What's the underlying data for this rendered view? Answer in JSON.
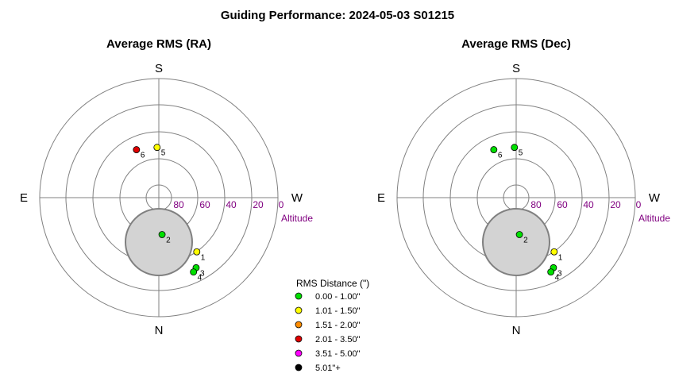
{
  "title": "Guiding Performance: 2024-05-03 S01215",
  "colors": {
    "ring": "#808080",
    "axis": "#808080",
    "altitude_text": "#800080",
    "horizon_fill": "#d3d3d3",
    "horizon_stroke": "#808080",
    "point_stroke": "#000000"
  },
  "legend": {
    "title": "RMS Distance (\")",
    "items": [
      {
        "label": "0.00 - 1.00\"",
        "color": "#00e000"
      },
      {
        "label": "1.01 - 1.50\"",
        "color": "#ffff00"
      },
      {
        "label": "1.51 - 2.00\"",
        "color": "#ff8c00"
      },
      {
        "label": "2.01 - 3.50\"",
        "color": "#e00000"
      },
      {
        "label": "3.51 - 5.00\"",
        "color": "#ff00ff"
      },
      {
        "label": "5.01\"+",
        "color": "#000000"
      }
    ]
  },
  "chart_data": [
    {
      "type": "scatter",
      "title": "Average RMS (RA)",
      "directions": {
        "top": "S",
        "bottom": "N",
        "left": "E",
        "right": "W"
      },
      "altitude_ticks": [
        "80",
        "60",
        "40",
        "20",
        "0"
      ],
      "altitude_label": "Altitude",
      "points": [
        {
          "label": "1",
          "azimuth": 325,
          "altitude": 40,
          "bin": 1
        },
        {
          "label": "2",
          "azimuth": 355,
          "altitude": 62,
          "bin": 0
        },
        {
          "label": "3",
          "azimuth": 332,
          "altitude": 30,
          "bin": 0
        },
        {
          "label": "4",
          "azimuth": 335,
          "altitude": 28,
          "bin": 0
        },
        {
          "label": "5",
          "azimuth": 178,
          "altitude": 52,
          "bin": 1
        },
        {
          "label": "6",
          "azimuth": 155,
          "altitude": 50,
          "bin": 3
        }
      ]
    },
    {
      "type": "scatter",
      "title": "Average RMS (Dec)",
      "directions": {
        "top": "S",
        "bottom": "N",
        "left": "E",
        "right": "W"
      },
      "altitude_ticks": [
        "80",
        "60",
        "40",
        "20",
        "0"
      ],
      "altitude_label": "Altitude",
      "points": [
        {
          "label": "1",
          "azimuth": 325,
          "altitude": 40,
          "bin": 1
        },
        {
          "label": "2",
          "azimuth": 355,
          "altitude": 62,
          "bin": 0
        },
        {
          "label": "3",
          "azimuth": 332,
          "altitude": 30,
          "bin": 0
        },
        {
          "label": "4",
          "azimuth": 335,
          "altitude": 28,
          "bin": 0
        },
        {
          "label": "5",
          "azimuth": 178,
          "altitude": 52,
          "bin": 0
        },
        {
          "label": "6",
          "azimuth": 155,
          "altitude": 50,
          "bin": 0
        }
      ]
    }
  ]
}
